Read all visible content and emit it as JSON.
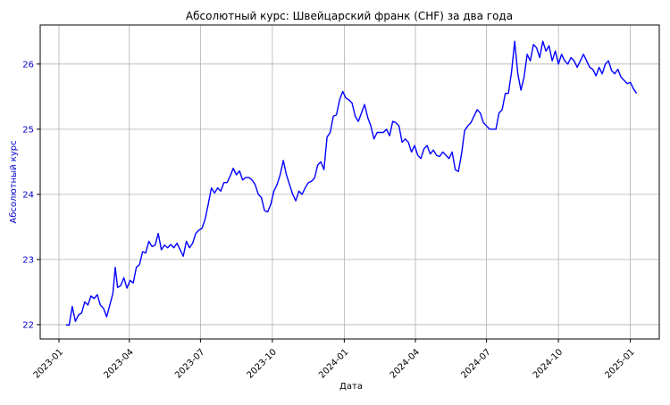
{
  "chart_data": {
    "type": "line",
    "title": "Абсолютный курс: Швейцарский франк (CHF) за два года",
    "xlabel": "Дата",
    "ylabel": "Абсолютный курс",
    "ylabel_color": "#0000cc",
    "line_color": "#0000ff",
    "grid": true,
    "xlim": [
      "2022-12-08",
      "2025-02-07"
    ],
    "ylim": [
      21.78,
      26.6
    ],
    "x_ticks": [
      {
        "date": "2023-01-01",
        "label": "2023-01"
      },
      {
        "date": "2023-04-01",
        "label": "2023-04"
      },
      {
        "date": "2023-07-01",
        "label": "2023-07"
      },
      {
        "date": "2023-10-01",
        "label": "2023-10"
      },
      {
        "date": "2024-01-01",
        "label": "2024-01"
      },
      {
        "date": "2024-04-01",
        "label": "2024-04"
      },
      {
        "date": "2024-07-01",
        "label": "2024-07"
      },
      {
        "date": "2024-10-01",
        "label": "2024-10"
      },
      {
        "date": "2025-01-01",
        "label": "2025-01"
      }
    ],
    "y_ticks": [
      {
        "value": 22,
        "label": "22"
      },
      {
        "value": 23,
        "label": "23"
      },
      {
        "value": 24,
        "label": "24"
      },
      {
        "value": 25,
        "label": "25"
      },
      {
        "value": 26,
        "label": "26"
      }
    ],
    "series": [
      {
        "x": [
          "2023-01-10",
          "2023-01-14",
          "2023-01-18",
          "2023-01-22",
          "2023-01-26",
          "2023-01-30",
          "2023-02-03",
          "2023-02-07",
          "2023-02-11",
          "2023-02-15",
          "2023-02-19",
          "2023-02-23",
          "2023-02-27",
          "2023-03-03",
          "2023-03-07",
          "2023-03-11",
          "2023-03-14",
          "2023-03-17",
          "2023-03-21",
          "2023-03-25",
          "2023-03-29",
          "2023-04-02",
          "2023-04-06",
          "2023-04-10",
          "2023-04-14",
          "2023-04-18",
          "2023-04-22",
          "2023-04-26",
          "2023-04-30",
          "2023-05-04",
          "2023-05-08",
          "2023-05-12",
          "2023-05-16",
          "2023-05-20",
          "2023-05-24",
          "2023-05-28",
          "2023-06-01",
          "2023-06-05",
          "2023-06-09",
          "2023-06-13",
          "2023-06-17",
          "2023-06-21",
          "2023-06-25",
          "2023-06-29",
          "2023-07-03",
          "2023-07-07",
          "2023-07-11",
          "2023-07-15",
          "2023-07-19",
          "2023-07-23",
          "2023-07-27",
          "2023-07-31",
          "2023-08-04",
          "2023-08-08",
          "2023-08-12",
          "2023-08-16",
          "2023-08-20",
          "2023-08-24",
          "2023-08-28",
          "2023-09-01",
          "2023-09-05",
          "2023-09-09",
          "2023-09-13",
          "2023-09-17",
          "2023-09-21",
          "2023-09-25",
          "2023-09-29",
          "2023-10-03",
          "2023-10-07",
          "2023-10-11",
          "2023-10-15",
          "2023-10-19",
          "2023-10-23",
          "2023-10-27",
          "2023-10-31",
          "2023-11-04",
          "2023-11-08",
          "2023-11-12",
          "2023-11-16",
          "2023-11-20",
          "2023-11-24",
          "2023-11-28",
          "2023-12-02",
          "2023-12-06",
          "2023-12-10",
          "2023-12-14",
          "2023-12-18",
          "2023-12-22",
          "2023-12-26",
          "2023-12-30",
          "2024-01-03",
          "2024-01-07",
          "2024-01-11",
          "2024-01-15",
          "2024-01-19",
          "2024-01-23",
          "2024-01-27",
          "2024-01-31",
          "2024-02-04",
          "2024-02-08",
          "2024-02-12",
          "2024-02-16",
          "2024-02-20",
          "2024-02-24",
          "2024-02-28",
          "2024-03-03",
          "2024-03-07",
          "2024-03-11",
          "2024-03-15",
          "2024-03-19",
          "2024-03-23",
          "2024-03-27",
          "2024-03-31",
          "2024-04-04",
          "2024-04-08",
          "2024-04-12",
          "2024-04-16",
          "2024-04-20",
          "2024-04-24",
          "2024-04-28",
          "2024-05-02",
          "2024-05-06",
          "2024-05-10",
          "2024-05-14",
          "2024-05-18",
          "2024-05-22",
          "2024-05-26",
          "2024-05-30",
          "2024-06-03",
          "2024-06-07",
          "2024-06-11",
          "2024-06-15",
          "2024-06-19",
          "2024-06-23",
          "2024-06-27",
          "2024-07-01",
          "2024-07-05",
          "2024-07-09",
          "2024-07-13",
          "2024-07-17",
          "2024-07-21",
          "2024-07-25",
          "2024-07-29",
          "2024-08-02",
          "2024-08-06",
          "2024-08-10",
          "2024-08-14",
          "2024-08-18",
          "2024-08-22",
          "2024-08-26",
          "2024-08-30",
          "2024-09-03",
          "2024-09-07",
          "2024-09-11",
          "2024-09-15",
          "2024-09-19",
          "2024-09-23",
          "2024-09-27",
          "2024-10-01",
          "2024-10-05",
          "2024-10-09",
          "2024-10-13",
          "2024-10-17",
          "2024-10-21",
          "2024-10-25",
          "2024-10-29",
          "2024-11-02",
          "2024-11-06",
          "2024-11-10",
          "2024-11-14",
          "2024-11-18",
          "2024-11-22",
          "2024-11-26",
          "2024-11-30",
          "2024-12-04",
          "2024-12-08",
          "2024-12-12",
          "2024-12-16",
          "2024-12-20",
          "2024-12-24",
          "2024-12-28",
          "2025-01-01",
          "2025-01-05",
          "2025-01-09"
        ],
        "y": [
          22.0,
          21.99,
          22.28,
          22.05,
          22.15,
          22.18,
          22.35,
          22.3,
          22.44,
          22.4,
          22.46,
          22.3,
          22.25,
          22.12,
          22.3,
          22.48,
          22.88,
          22.57,
          22.6,
          22.72,
          22.56,
          22.68,
          22.64,
          22.88,
          22.92,
          23.12,
          23.1,
          23.28,
          23.2,
          23.22,
          23.4,
          23.15,
          23.22,
          23.18,
          23.23,
          23.18,
          23.25,
          23.15,
          23.05,
          23.28,
          23.18,
          23.25,
          23.4,
          23.45,
          23.48,
          23.62,
          23.85,
          24.1,
          24.02,
          24.1,
          24.05,
          24.18,
          24.18,
          24.28,
          24.4,
          24.3,
          24.36,
          24.22,
          24.26,
          24.26,
          24.22,
          24.15,
          24.0,
          23.95,
          23.75,
          23.73,
          23.85,
          24.05,
          24.15,
          24.3,
          24.52,
          24.3,
          24.15,
          24.0,
          23.9,
          24.05,
          24.0,
          24.1,
          24.18,
          24.2,
          24.25,
          24.45,
          24.5,
          24.38,
          24.88,
          24.95,
          25.2,
          25.22,
          25.45,
          25.58,
          25.48,
          25.45,
          25.4,
          25.2,
          25.12,
          25.25,
          25.38,
          25.18,
          25.05,
          24.85,
          24.95,
          24.95,
          24.95,
          25.0,
          24.9,
          25.12,
          25.1,
          25.05,
          24.8,
          24.85,
          24.8,
          24.65,
          24.75,
          24.6,
          24.55,
          24.7,
          24.75,
          24.62,
          24.68,
          24.6,
          24.58,
          24.65,
          24.6,
          24.55,
          24.65,
          24.38,
          24.35,
          24.62,
          24.98,
          25.05,
          25.1,
          25.2,
          25.3,
          25.25,
          25.1,
          25.05,
          25.0,
          25.0,
          25.0,
          25.25,
          25.3,
          25.55,
          25.55,
          25.88,
          26.35,
          25.85,
          25.6,
          25.8,
          26.15,
          26.05,
          26.3,
          26.25,
          26.1,
          26.35,
          26.2,
          26.28,
          26.05,
          26.2,
          26.0,
          26.15,
          26.05,
          26.0,
          26.1,
          26.05,
          25.95,
          26.05,
          26.15,
          26.05,
          25.95,
          25.92,
          25.82,
          25.95,
          25.85,
          26.0,
          26.05,
          25.9,
          25.85,
          25.92,
          25.8,
          25.75,
          25.7,
          25.72,
          25.62,
          25.55
        ]
      }
    ]
  }
}
